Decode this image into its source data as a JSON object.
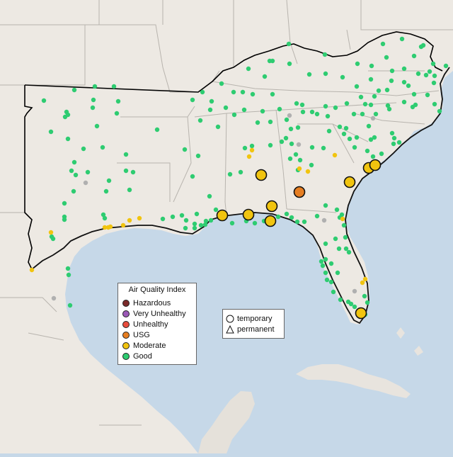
{
  "colors": {
    "water": "#c6d8e8",
    "land": "#ede9e3",
    "land_mexico": "#e5e1da",
    "border_line": "#b8b4ae",
    "region_outline": "#000000",
    "good": "#2ecc71",
    "moderate": "#f1c40f",
    "usg": "#e67e22",
    "unhealthy": "#e74c3c",
    "very_unhealthy": "#9b59b6",
    "hazardous": "#7b2a2a",
    "nodata": "#b0b0b0"
  },
  "legend": {
    "title": "Air Quality Index",
    "items": [
      {
        "label": "Hazardous",
        "color": "#7b2a2a"
      },
      {
        "label": "Very Unhealthy",
        "color": "#9b59b6"
      },
      {
        "label": "Unhealthy",
        "color": "#e74c3c"
      },
      {
        "label": "USG",
        "color": "#e67e22"
      },
      {
        "label": "Moderate",
        "color": "#f1c40f"
      },
      {
        "label": "Good",
        "color": "#2ecc71"
      }
    ]
  },
  "monitor_legend": {
    "temporary": "temporary",
    "permanent": "permanent"
  }
}
